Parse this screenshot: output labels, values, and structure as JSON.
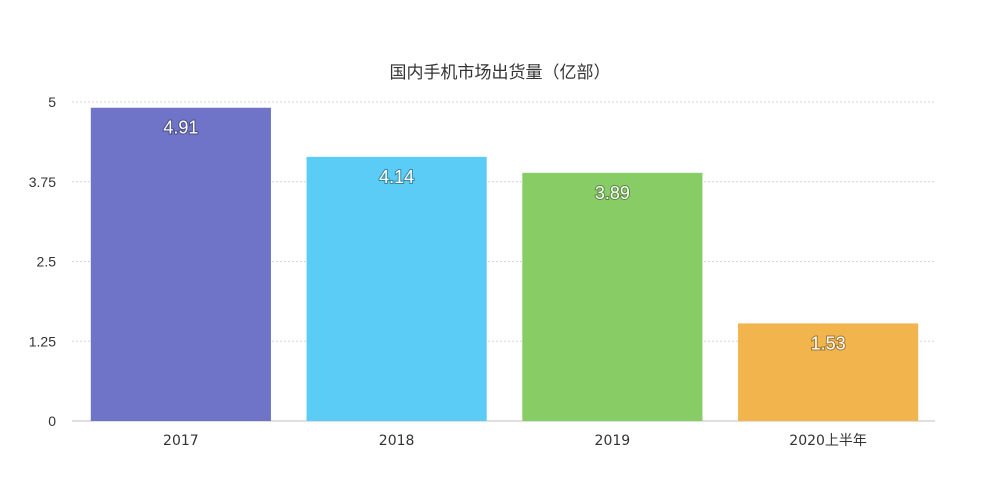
{
  "chart_data": {
    "type": "bar",
    "title": "国内手机市场出货量（亿部）",
    "categories": [
      "2017",
      "2018",
      "2019",
      "2020上半年"
    ],
    "values": [
      4.91,
      4.14,
      3.89,
      1.53
    ],
    "value_labels": [
      "4.91",
      "4.14",
      "3.89",
      "1.53"
    ],
    "colors": [
      "#7074c9",
      "#5accf5",
      "#88cc66",
      "#f2b54d"
    ],
    "ylim": [
      0,
      5
    ],
    "yticks": [
      0,
      1.25,
      2.5,
      3.75,
      5
    ],
    "ytick_labels": [
      "0",
      "1.25",
      "2.5",
      "3.75",
      "5"
    ],
    "grid": true,
    "xlabel": "",
    "ylabel": ""
  }
}
